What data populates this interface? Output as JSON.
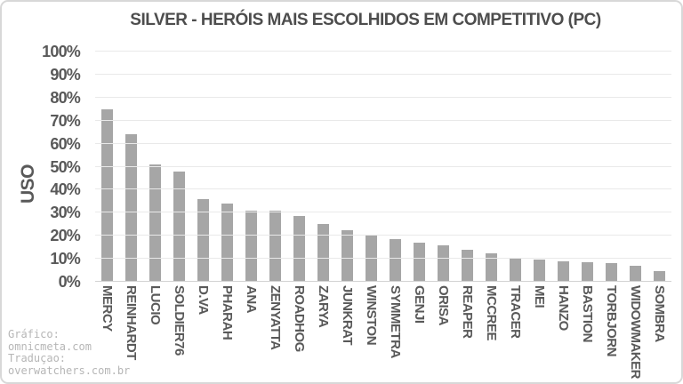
{
  "header": {
    "title": "SILVER - HERÓIS MAIS ESCOLHIDOS EM COMPETITIVO (PC)"
  },
  "chart_data": {
    "type": "bar",
    "title": "SILVER - HERÓIS MAIS ESCOLHIDOS EM COMPETITIVO (PC)",
    "xlabel": "",
    "ylabel": "USO",
    "ylim": [
      0,
      100
    ],
    "y_ticks": [
      "0%",
      "10%",
      "20%",
      "30%",
      "40%",
      "50%",
      "60%",
      "70%",
      "80%",
      "90%",
      "100%"
    ],
    "grid": true,
    "legend": "none",
    "bar_color": "#a6a6a6",
    "categories": [
      "MERCY",
      "REINHARDT",
      "LUCIO",
      "SOLDIER76",
      "D.VA",
      "PHARAH",
      "ANA",
      "ZENYATTA",
      "ROADHOG",
      "ZARYA",
      "JUNKRAT",
      "WINSTON",
      "SYMMETRA",
      "GENJI",
      "ORISA",
      "REAPER",
      "MCCREE",
      "TRACER",
      "MEI",
      "HANZO",
      "BASTION",
      "TORBJORN",
      "WIDOWMAKER",
      "SOMBRA"
    ],
    "values": [
      75,
      64,
      51,
      48,
      36,
      34,
      31,
      31,
      28.5,
      25,
      22.5,
      20,
      18.5,
      17,
      16,
      14,
      12.5,
      10.5,
      9.5,
      9,
      8.5,
      8,
      7,
      4.5
    ]
  },
  "credit": {
    "lines": [
      "Gráfico:",
      "omnicmeta.com",
      "Traduçao:",
      "overwatchers.com.br"
    ]
  },
  "colors": {
    "bar": "#a6a6a6",
    "gridline": "#e9e9e9",
    "baseline": "#d2d2d2",
    "axis_text": "#595959",
    "title_text": "#4d4d4d",
    "credit_text": "#b6b6b6",
    "frame_border": "#d8d8d8",
    "background": "#ffffff"
  }
}
